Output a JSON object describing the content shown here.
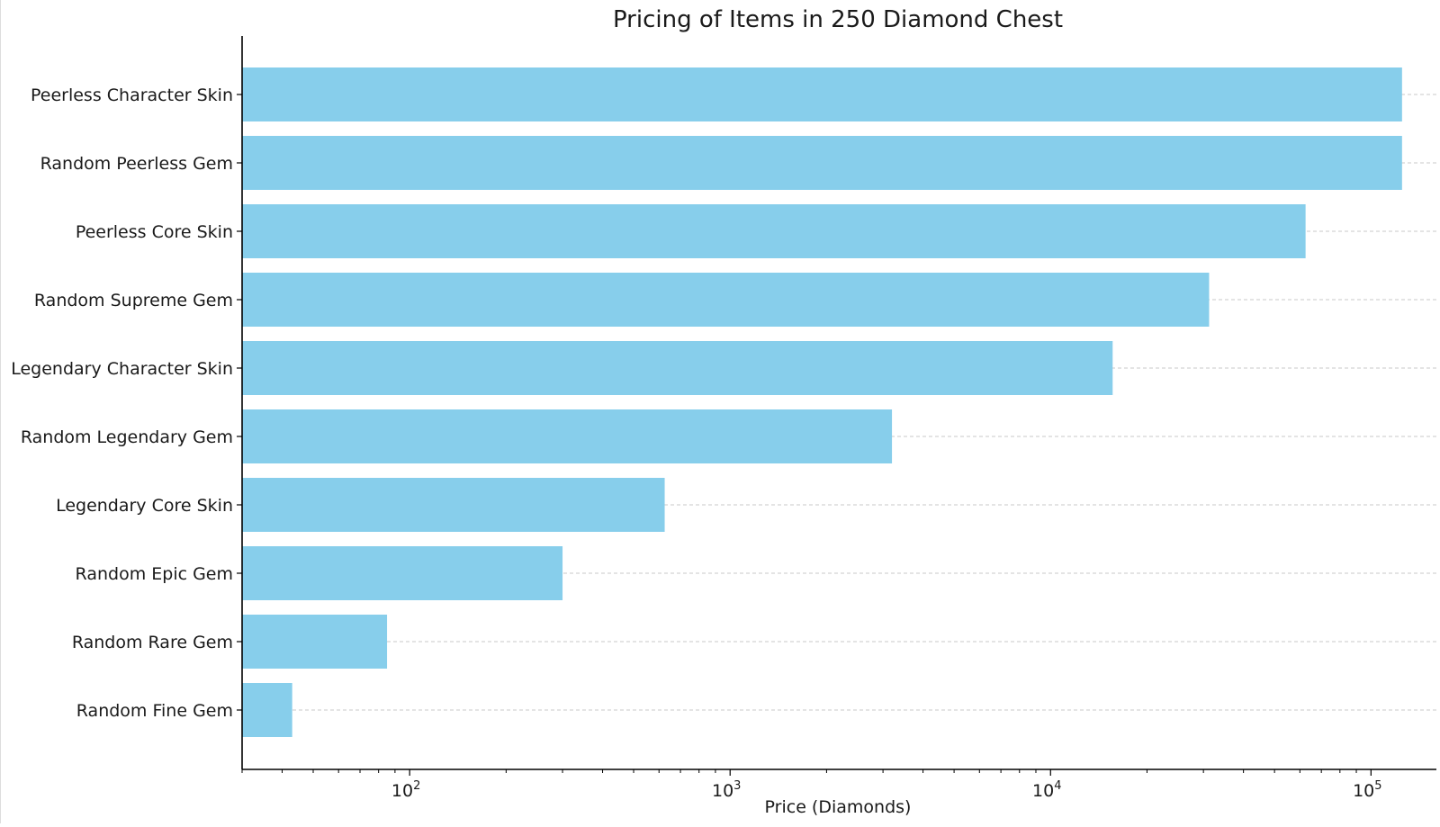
{
  "chart_data": {
    "type": "bar",
    "orientation": "horizontal",
    "title": "Pricing of Items in 250 Diamond Chest",
    "xlabel": "Price (Diamonds)",
    "ylabel": "",
    "xscale": "log",
    "xlim": [
      30,
      160000
    ],
    "grid": "x-dashed",
    "bar_color": "#87ceeb",
    "categories": [
      "Peerless Character Skin",
      "Random Peerless Gem",
      "Peerless Core Skin",
      "Random Supreme Gem",
      "Legendary Character Skin",
      "Random Legendary Gem",
      "Legendary Core Skin",
      "Random Epic Gem",
      "Random Rare Gem",
      "Random Fine Gem"
    ],
    "values": [
      125000,
      125000,
      62500,
      31250,
      15625,
      3200,
      625,
      300,
      85,
      43
    ],
    "x_ticks": [
      {
        "value": 100,
        "base": "10",
        "exp": "2"
      },
      {
        "value": 1000,
        "base": "10",
        "exp": "3"
      },
      {
        "value": 10000,
        "base": "10",
        "exp": "4"
      },
      {
        "value": 100000,
        "base": "10",
        "exp": "5"
      }
    ]
  }
}
